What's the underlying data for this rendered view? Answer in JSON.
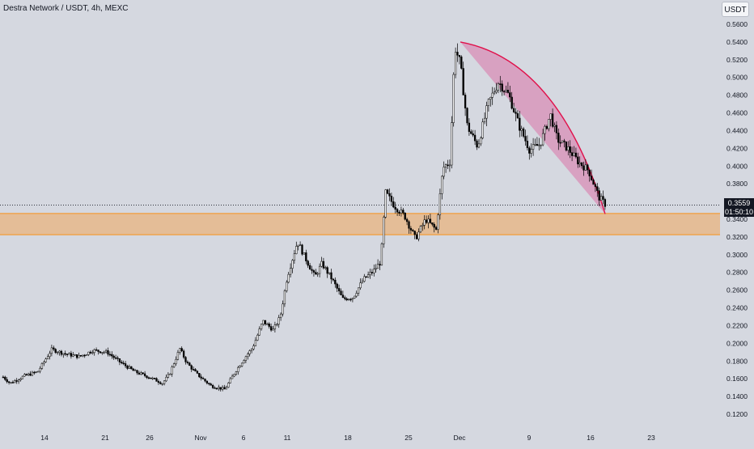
{
  "header": {
    "title": "Destra Network / USDT, 4h, MEXC",
    "currency_button": "USDT"
  },
  "last_price": {
    "price": "0.3559",
    "countdown": "01:50:10"
  },
  "colors": {
    "background": "#d5d8e0",
    "candle": "#000000",
    "zone_fill": "#e6b98a",
    "zone_border": "#f7921a",
    "arc_line": "#e0104a",
    "arc_fill": "#d98ab4",
    "price_tag": "#131722"
  },
  "chart_data": {
    "type": "candlestick",
    "symbol": "Destra Network / USDT",
    "interval": "4h",
    "exchange": "MEXC",
    "y_axis": {
      "side": "right",
      "ylim": [
        0.11,
        0.57
      ],
      "ticks": [
        "0.5600",
        "0.5400",
        "0.5200",
        "0.5000",
        "0.4800",
        "0.4600",
        "0.4400",
        "0.4200",
        "0.4000",
        "0.3800",
        "0.3600",
        "0.3400",
        "0.3200",
        "0.3000",
        "0.2800",
        "0.2600",
        "0.2400",
        "0.2200",
        "0.2000",
        "0.1800",
        "0.1600",
        "0.1400",
        "0.1200"
      ]
    },
    "x_axis": {
      "ticks": [
        "14",
        "21",
        "26",
        "Nov",
        "6",
        "11",
        "18",
        "25",
        "Dec",
        "9",
        "16",
        "23"
      ]
    },
    "price_path": [
      {
        "t": 0,
        "p": 0.162
      },
      {
        "t": 0.01,
        "p": 0.155
      },
      {
        "t": 0.03,
        "p": 0.163
      },
      {
        "t": 0.05,
        "p": 0.168
      },
      {
        "t": 0.07,
        "p": 0.193
      },
      {
        "t": 0.09,
        "p": 0.188
      },
      {
        "t": 0.11,
        "p": 0.185
      },
      {
        "t": 0.13,
        "p": 0.192
      },
      {
        "t": 0.15,
        "p": 0.19
      },
      {
        "t": 0.17,
        "p": 0.178
      },
      {
        "t": 0.19,
        "p": 0.168
      },
      {
        "t": 0.21,
        "p": 0.162
      },
      {
        "t": 0.23,
        "p": 0.155
      },
      {
        "t": 0.24,
        "p": 0.165
      },
      {
        "t": 0.255,
        "p": 0.194
      },
      {
        "t": 0.265,
        "p": 0.178
      },
      {
        "t": 0.28,
        "p": 0.165
      },
      {
        "t": 0.3,
        "p": 0.152
      },
      {
        "t": 0.32,
        "p": 0.148
      },
      {
        "t": 0.335,
        "p": 0.168
      },
      {
        "t": 0.35,
        "p": 0.185
      },
      {
        "t": 0.36,
        "p": 0.195
      },
      {
        "t": 0.375,
        "p": 0.225
      },
      {
        "t": 0.39,
        "p": 0.215
      },
      {
        "t": 0.4,
        "p": 0.23
      },
      {
        "t": 0.41,
        "p": 0.275
      },
      {
        "t": 0.425,
        "p": 0.315
      },
      {
        "t": 0.435,
        "p": 0.298
      },
      {
        "t": 0.45,
        "p": 0.275
      },
      {
        "t": 0.46,
        "p": 0.29
      },
      {
        "t": 0.475,
        "p": 0.272
      },
      {
        "t": 0.49,
        "p": 0.25
      },
      {
        "t": 0.505,
        "p": 0.252
      },
      {
        "t": 0.52,
        "p": 0.272
      },
      {
        "t": 0.535,
        "p": 0.282
      },
      {
        "t": 0.545,
        "p": 0.292
      },
      {
        "t": 0.552,
        "p": 0.37
      },
      {
        "t": 0.565,
        "p": 0.355
      },
      {
        "t": 0.58,
        "p": 0.343
      },
      {
        "t": 0.595,
        "p": 0.318
      },
      {
        "t": 0.61,
        "p": 0.34
      },
      {
        "t": 0.625,
        "p": 0.328
      },
      {
        "t": 0.635,
        "p": 0.398
      },
      {
        "t": 0.645,
        "p": 0.405
      },
      {
        "t": 0.652,
        "p": 0.535
      },
      {
        "t": 0.66,
        "p": 0.515
      },
      {
        "t": 0.67,
        "p": 0.445
      },
      {
        "t": 0.685,
        "p": 0.422
      },
      {
        "t": 0.7,
        "p": 0.47
      },
      {
        "t": 0.715,
        "p": 0.495
      },
      {
        "t": 0.73,
        "p": 0.48
      },
      {
        "t": 0.745,
        "p": 0.445
      },
      {
        "t": 0.76,
        "p": 0.418
      },
      {
        "t": 0.775,
        "p": 0.425
      },
      {
        "t": 0.79,
        "p": 0.458
      },
      {
        "t": 0.8,
        "p": 0.43
      },
      {
        "t": 0.815,
        "p": 0.42
      },
      {
        "t": 0.83,
        "p": 0.405
      },
      {
        "t": 0.845,
        "p": 0.395
      },
      {
        "t": 0.86,
        "p": 0.365
      },
      {
        "t": 0.87,
        "p": 0.356
      }
    ],
    "support_zone": {
      "from": 0.3225,
      "to": 0.3465
    },
    "curved_resistance": {
      "start_price": 0.54,
      "end_price": 0.346
    },
    "last_price": 0.3559
  }
}
